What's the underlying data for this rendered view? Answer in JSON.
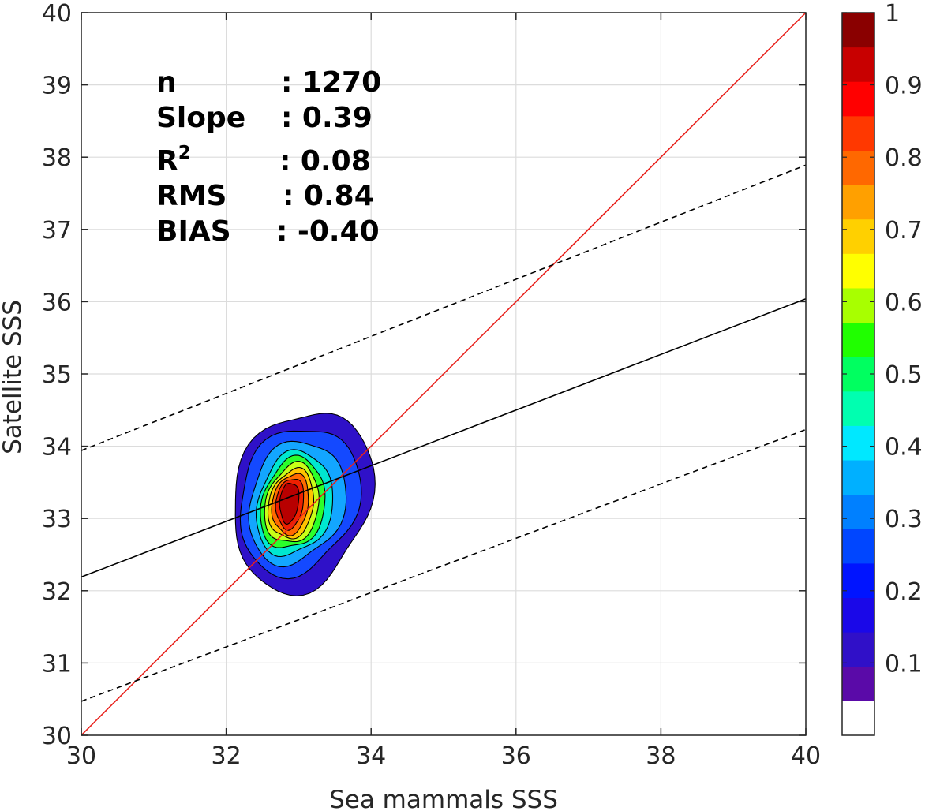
{
  "chart_data": {
    "type": "contour",
    "xlabel": "Sea mammals  SSS",
    "ylabel": "Satellite SSS",
    "xlim": [
      30,
      40
    ],
    "ylim": [
      30,
      40
    ],
    "xticks": [
      "30",
      "32",
      "34",
      "36",
      "38",
      "40"
    ],
    "yticks": [
      "30",
      "31",
      "32",
      "33",
      "34",
      "35",
      "36",
      "37",
      "38",
      "39",
      "40"
    ],
    "grid": true,
    "lines": [
      {
        "kind": "identity",
        "color": "#e8211c",
        "style": "solid",
        "slope": 1.0,
        "intercept": 0.0
      },
      {
        "kind": "regression",
        "color": "#000000",
        "style": "solid",
        "slope": 0.385,
        "intercept": 20.64
      },
      {
        "kind": "regression+rms",
        "color": "#000000",
        "style": "dashed",
        "slope": 0.395,
        "intercept": 22.09
      },
      {
        "kind": "regression-rms",
        "color": "#000000",
        "style": "dashed",
        "slope": 0.376,
        "intercept": 19.19
      }
    ],
    "density_contours": {
      "levels": [
        0.05,
        0.1,
        0.2,
        0.3,
        0.4,
        0.5,
        0.6,
        0.7,
        0.8,
        0.9
      ],
      "peak": {
        "x": 32.9,
        "y": 33.2,
        "value": 1.0
      },
      "fill_colors": [
        "#2f11c8",
        "#1449ff",
        "#13a6ff",
        "#00e7d0",
        "#2bff2b",
        "#c8ff18",
        "#ffc400",
        "#ff6a00",
        "#ee2000",
        "#b80000"
      ]
    },
    "stats": {
      "n_label": "n",
      "n_value": ": 1270",
      "slope_label": "Slope",
      "slope_value": ": 0.39",
      "r2_label": "R",
      "r2_sup": "2",
      "r2_value": ": 0.08",
      "rms_label": "RMS",
      "rms_value": ": 0.84",
      "bias_label": "BIAS",
      "bias_value": ": -0.40"
    },
    "colorbar": {
      "ticks": [
        "0.1",
        "0.2",
        "0.3",
        "0.4",
        "0.5",
        "0.6",
        "0.7",
        "0.8",
        "0.9",
        "1"
      ],
      "tick_values": [
        0.1,
        0.2,
        0.3,
        0.4,
        0.5,
        0.6,
        0.7,
        0.8,
        0.9,
        1.0
      ],
      "range": [
        0,
        1
      ],
      "bands": [
        "#ffffff",
        "#5a0aa8",
        "#3010c8",
        "#1a08e8",
        "#0014ff",
        "#0046ff",
        "#0080ff",
        "#00b0ff",
        "#00e8ff",
        "#00ffb0",
        "#00ff60",
        "#20ff00",
        "#a8ff00",
        "#ffff00",
        "#ffd000",
        "#ffa000",
        "#ff6800",
        "#ff3800",
        "#ff0000",
        "#c80000",
        "#8a0000"
      ]
    }
  }
}
